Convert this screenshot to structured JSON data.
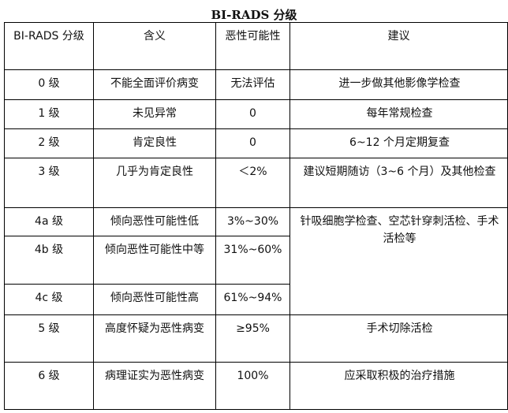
{
  "title": "BI-RADS 分级",
  "headers": [
    "BI-RADS 分级",
    "含义",
    "恶性可能性",
    "建议"
  ],
  "rows": [
    {
      "grade": "0 级",
      "meaning": "不能全面评价病变",
      "malignancy": "无法评估",
      "advice": "进一步做其他影像学检查"
    },
    {
      "grade": "1 级",
      "meaning": "未见异常",
      "malignancy": "0",
      "advice": "每年常规检查"
    },
    {
      "grade": "2 级",
      "meaning": "肯定良性",
      "malignancy": "0",
      "advice": "6~12 个月定期复查"
    },
    {
      "grade": "3 级",
      "meaning": "几乎为肯定良性",
      "malignancy": "＜2%",
      "advice": "建议短期随访（3~6 个月）及其他检查"
    },
    {
      "grade": "4a 级",
      "meaning": "倾向恶性可能性低",
      "malignancy": "3%~30%",
      "advice": "针吸细胞学检查、空芯针穿刺活检、手术活检等"
    },
    {
      "grade": "4b 级",
      "meaning": "倾向恶性可能性中等",
      "malignancy": "31%~60%"
    },
    {
      "grade": "4c 级",
      "meaning": "倾向恶性可能性高",
      "malignancy": "61%~94%"
    },
    {
      "grade": "5 级",
      "meaning": "高度怀疑为恶性病变",
      "malignancy": "≥95%",
      "advice": "手术切除活检"
    },
    {
      "grade": "6 级",
      "meaning": "病理证实为恶性病变",
      "malignancy": "100%",
      "advice": "应采取积极的治疗措施"
    }
  ]
}
